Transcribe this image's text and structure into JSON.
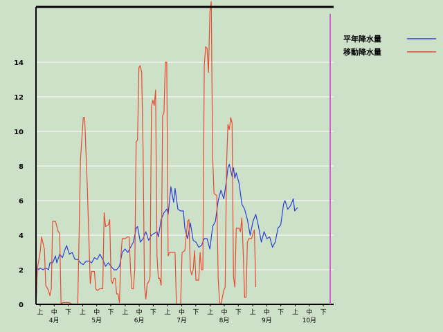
{
  "chart_data": {
    "type": "line",
    "title": "",
    "xlabel": "",
    "ylabel": "",
    "ylim": [
      0,
      17.2
    ],
    "yticks": [
      0,
      2,
      4,
      6,
      8,
      10,
      12,
      14
    ],
    "grid": true,
    "legend_position": "top-right",
    "x_range": [
      0,
      214
    ],
    "period_marks": [
      "上",
      "中",
      "下"
    ],
    "months": [
      "4月",
      "5月",
      "6月",
      "7月",
      "8月",
      "9月",
      "10月"
    ],
    "colors": {
      "background": "#cde0c8",
      "grid": "#ffffff",
      "frame": "#000000",
      "today_marker": "#cc66cc"
    },
    "series": [
      {
        "name": "平年降水量",
        "color": "#2a3fd6",
        "points": [
          [
            0,
            0
          ],
          [
            1,
            2.1
          ],
          [
            2,
            2.0
          ],
          [
            3,
            2.1
          ],
          [
            5,
            2.0
          ],
          [
            7,
            2.1
          ],
          [
            9,
            2.0
          ],
          [
            10,
            2.4
          ],
          [
            12,
            2.4
          ],
          [
            14,
            2.8
          ],
          [
            15,
            2.4
          ],
          [
            17,
            2.9
          ],
          [
            19,
            2.7
          ],
          [
            21,
            3.2
          ],
          [
            22,
            3.4
          ],
          [
            24,
            2.9
          ],
          [
            26,
            3.0
          ],
          [
            28,
            2.6
          ],
          [
            30,
            2.6
          ],
          [
            32,
            2.4
          ],
          [
            34,
            2.3
          ],
          [
            36,
            2.5
          ],
          [
            38,
            2.5
          ],
          [
            40,
            2.4
          ],
          [
            42,
            2.7
          ],
          [
            44,
            2.6
          ],
          [
            46,
            2.9
          ],
          [
            48,
            2.6
          ],
          [
            50,
            2.2
          ],
          [
            52,
            2.4
          ],
          [
            54,
            2.2
          ],
          [
            56,
            2.0
          ],
          [
            58,
            2.0
          ],
          [
            60,
            2.2
          ],
          [
            62,
            3.0
          ],
          [
            64,
            3.2
          ],
          [
            66,
            3.0
          ],
          [
            68,
            3.3
          ],
          [
            70,
            3.6
          ],
          [
            72,
            4.4
          ],
          [
            73,
            4.5
          ],
          [
            75,
            3.6
          ],
          [
            77,
            3.8
          ],
          [
            79,
            4.2
          ],
          [
            81,
            3.7
          ],
          [
            83,
            4.0
          ],
          [
            85,
            4.1
          ],
          [
            87,
            4.2
          ],
          [
            88,
            3.9
          ],
          [
            90,
            4.9
          ],
          [
            92,
            5.3
          ],
          [
            94,
            5.5
          ],
          [
            95,
            5.2
          ],
          [
            97,
            6.8
          ],
          [
            98,
            6.3
          ],
          [
            99,
            5.9
          ],
          [
            100,
            6.7
          ],
          [
            102,
            5.5
          ],
          [
            104,
            5.4
          ],
          [
            106,
            5.4
          ],
          [
            107,
            4.4
          ],
          [
            109,
            3.8
          ],
          [
            111,
            4.7
          ],
          [
            113,
            3.7
          ],
          [
            115,
            3.6
          ],
          [
            117,
            3.3
          ],
          [
            119,
            3.4
          ],
          [
            121,
            3.8
          ],
          [
            123,
            3.8
          ],
          [
            125,
            3.2
          ],
          [
            127,
            4.5
          ],
          [
            129,
            4.8
          ],
          [
            131,
            6.0
          ],
          [
            133,
            6.6
          ],
          [
            135,
            6.1
          ],
          [
            137,
            7.2
          ],
          [
            138,
            7.9
          ],
          [
            139,
            8.1
          ],
          [
            141,
            7.4
          ],
          [
            142,
            7.9
          ],
          [
            143,
            7.3
          ],
          [
            144,
            7.6
          ],
          [
            146,
            7.0
          ],
          [
            148,
            5.8
          ],
          [
            150,
            5.5
          ],
          [
            152,
            4.9
          ],
          [
            154,
            4.0
          ],
          [
            156,
            4.8
          ],
          [
            158,
            5.2
          ],
          [
            160,
            4.5
          ],
          [
            162,
            3.6
          ],
          [
            164,
            4.2
          ],
          [
            166,
            3.8
          ],
          [
            168,
            3.9
          ],
          [
            170,
            3.3
          ],
          [
            172,
            3.6
          ],
          [
            174,
            4.4
          ],
          [
            176,
            4.6
          ],
          [
            178,
            5.8
          ],
          [
            179,
            6.0
          ],
          [
            181,
            5.5
          ],
          [
            183,
            5.7
          ],
          [
            185,
            6.1
          ],
          [
            186,
            5.4
          ],
          [
            188,
            5.6
          ]
        ]
      },
      {
        "name": "移動降水量",
        "color": "#e84a30",
        "points": [
          [
            0,
            0
          ],
          [
            1,
            2.1
          ],
          [
            3,
            3.0
          ],
          [
            4,
            3.9
          ],
          [
            6,
            3.2
          ],
          [
            7,
            1.1
          ],
          [
            9,
            0.8
          ],
          [
            10,
            0.5
          ],
          [
            11,
            0.9
          ],
          [
            12,
            4.8
          ],
          [
            14,
            4.8
          ],
          [
            16,
            4.2
          ],
          [
            17,
            4.1
          ],
          [
            18,
            0.0
          ],
          [
            19,
            0.1
          ],
          [
            24,
            0.1
          ],
          [
            26,
            0.0
          ],
          [
            30,
            0.0
          ],
          [
            31,
            4.1
          ],
          [
            32,
            8.4
          ],
          [
            34,
            10.8
          ],
          [
            35,
            10.8
          ],
          [
            36,
            8.7
          ],
          [
            37,
            6.6
          ],
          [
            39,
            1.2
          ],
          [
            40,
            1.9
          ],
          [
            42,
            1.9
          ],
          [
            43,
            0.9
          ],
          [
            44,
            0.8
          ],
          [
            46,
            0.9
          ],
          [
            48,
            0.9
          ],
          [
            49,
            5.3
          ],
          [
            50,
            4.5
          ],
          [
            52,
            4.6
          ],
          [
            53,
            4.9
          ],
          [
            54,
            1.4
          ],
          [
            55,
            1.2
          ],
          [
            56,
            1.5
          ],
          [
            57,
            1.5
          ],
          [
            58,
            0.6
          ],
          [
            59,
            0.6
          ],
          [
            60,
            0.1
          ],
          [
            61,
            2.8
          ],
          [
            62,
            3.8
          ],
          [
            64,
            3.8
          ],
          [
            66,
            3.9
          ],
          [
            67,
            3.9
          ],
          [
            68,
            2.0
          ],
          [
            69,
            0.9
          ],
          [
            70,
            0.9
          ],
          [
            71,
            2.0
          ],
          [
            72,
            9.4
          ],
          [
            73,
            9.5
          ],
          [
            74,
            13.7
          ],
          [
            75,
            13.8
          ],
          [
            76,
            13.4
          ],
          [
            77,
            8.9
          ],
          [
            78,
            1.1
          ],
          [
            79,
            0.3
          ],
          [
            80,
            1.2
          ],
          [
            81,
            1.3
          ],
          [
            82,
            1.6
          ],
          [
            83,
            11.4
          ],
          [
            84,
            11.8
          ],
          [
            85,
            11.5
          ],
          [
            86,
            12.4
          ],
          [
            87,
            2.8
          ],
          [
            88,
            1.5
          ],
          [
            89,
            1.5
          ],
          [
            90,
            1.1
          ],
          [
            91,
            10.9
          ],
          [
            92,
            11.1
          ],
          [
            93,
            14.0
          ],
          [
            94,
            14.0
          ],
          [
            95,
            2.8
          ],
          [
            96,
            3.0
          ],
          [
            98,
            3.0
          ],
          [
            100,
            3.0
          ],
          [
            101,
            0.0
          ],
          [
            104,
            0.0
          ],
          [
            105,
            3.0
          ],
          [
            107,
            3.1
          ],
          [
            109,
            4.8
          ],
          [
            110,
            4.9
          ],
          [
            111,
            2.0
          ],
          [
            112,
            1.7
          ],
          [
            113,
            2.0
          ],
          [
            114,
            3.1
          ],
          [
            115,
            1.4
          ],
          [
            117,
            1.4
          ],
          [
            118,
            3.0
          ],
          [
            119,
            2.0
          ],
          [
            120,
            2.0
          ],
          [
            121,
            13.8
          ],
          [
            122,
            14.9
          ],
          [
            123,
            14.8
          ],
          [
            124,
            13.4
          ],
          [
            125,
            16.9
          ],
          [
            126,
            17.5
          ],
          [
            127,
            8.5
          ],
          [
            128,
            6.4
          ],
          [
            130,
            6.3
          ],
          [
            131,
            1.5
          ],
          [
            132,
            0.1
          ],
          [
            133,
            0.0
          ],
          [
            135,
            0.8
          ],
          [
            136,
            1.0
          ],
          [
            137,
            8.1
          ],
          [
            138,
            10.4
          ],
          [
            139,
            10.1
          ],
          [
            140,
            10.8
          ],
          [
            141,
            10.5
          ],
          [
            142,
            1.6
          ],
          [
            143,
            1.0
          ],
          [
            144,
            4.4
          ],
          [
            146,
            4.4
          ],
          [
            147,
            4.2
          ],
          [
            148,
            5.0
          ],
          [
            149,
            3.0
          ],
          [
            150,
            0.4
          ],
          [
            151,
            0.4
          ],
          [
            152,
            3.6
          ],
          [
            153,
            3.8
          ],
          [
            155,
            3.8
          ],
          [
            156,
            4.1
          ],
          [
            157,
            4.3
          ],
          [
            158,
            1.0
          ]
        ]
      }
    ]
  }
}
